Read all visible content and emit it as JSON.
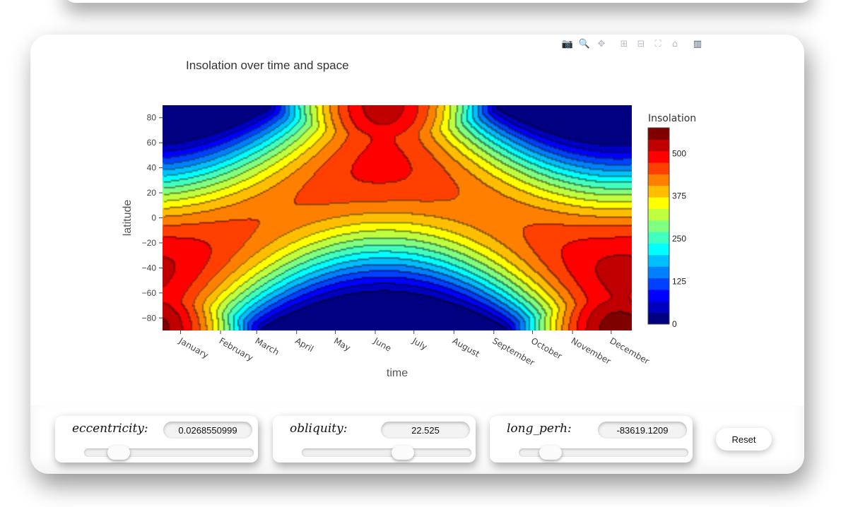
{
  "modebar": {
    "icons": [
      {
        "name": "camera-icon",
        "glyph": "📷",
        "active": false
      },
      {
        "name": "zoom-icon",
        "glyph": "🔍",
        "active": true
      },
      {
        "name": "pan-icon",
        "glyph": "✥",
        "active": false
      },
      {
        "name": "zoom-in-icon",
        "glyph": "⊞",
        "active": false
      },
      {
        "name": "zoom-out-icon",
        "glyph": "⊟",
        "active": false
      },
      {
        "name": "autoscale-icon",
        "glyph": "⛶",
        "active": false
      },
      {
        "name": "home-icon",
        "glyph": "⌂",
        "active": false
      },
      {
        "name": "plotly-logo-icon",
        "glyph": "▥",
        "active": true
      }
    ]
  },
  "chart_data": {
    "type": "heatmap",
    "subtype": "contour",
    "title": "Insolation over time and space",
    "xlabel": "time",
    "ylabel": "latitude",
    "x_categories": [
      "January",
      "February",
      "March",
      "April",
      "May",
      "June",
      "July",
      "August",
      "September",
      "October",
      "November",
      "December"
    ],
    "x_range_days": [
      1,
      365
    ],
    "y_ticks": [
      80,
      60,
      40,
      20,
      0,
      -20,
      -40,
      -60,
      -80
    ],
    "ylim": [
      -90,
      90
    ],
    "colorbar": {
      "title": "Insolation",
      "ticks": [
        500,
        375,
        250,
        125,
        0
      ],
      "range": [
        0,
        575
      ],
      "colorscale": "jet",
      "colors": [
        "#000080",
        "#0000c0",
        "#0000ff",
        "#0040ff",
        "#0080ff",
        "#00bfff",
        "#00ffff",
        "#40ffbf",
        "#80ff80",
        "#bfff40",
        "#ffff00",
        "#ffbf00",
        "#ff8000",
        "#ff4000",
        "#ff0000",
        "#c00000",
        "#800000"
      ]
    },
    "grid": false
  },
  "controls": {
    "eccentricity": {
      "label": "eccentricity:",
      "value": "0.0268550999",
      "fraction": 0.16
    },
    "obliquity": {
      "label": "obliquity:",
      "value": "22.525",
      "fraction": 0.61
    },
    "long_perh": {
      "label": "long_perh:",
      "value": "-83619.1209",
      "fraction": 0.14
    },
    "reset_label": "Reset"
  }
}
